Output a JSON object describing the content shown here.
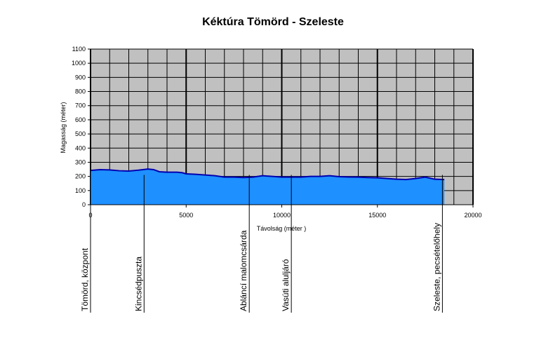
{
  "chart_data": {
    "type": "area",
    "title": "Kéktúra Tömörd - Szeleste",
    "xlabel": "Távolság (méter )",
    "ylabel": "Magasság (méter)",
    "xlim": [
      0,
      20000
    ],
    "ylim": [
      0,
      1100
    ],
    "x_ticks": [
      0,
      5000,
      10000,
      15000,
      20000
    ],
    "y_ticks": [
      0,
      100,
      200,
      300,
      400,
      500,
      600,
      700,
      800,
      900,
      1000,
      1100
    ],
    "grid": true,
    "colors": {
      "plot_background": "#c0c0c0",
      "area_fill": "#1e90ff",
      "profile_line": "#0000b0",
      "grid": "#000000"
    },
    "series": [
      {
        "x": [
          0,
          500,
          1000,
          1500,
          2000,
          2500,
          3000,
          3300,
          3600,
          4000,
          4500,
          4800,
          5000,
          5500,
          6000,
          6500,
          7000,
          7500,
          8000,
          8500,
          9000,
          9500,
          10000,
          10500,
          11000,
          11500,
          12000,
          12500,
          13000,
          13500,
          14000,
          14500,
          15000,
          15500,
          16000,
          16500,
          17000,
          17500,
          18000,
          18500
        ],
        "y": [
          242,
          248,
          246,
          240,
          238,
          244,
          252,
          248,
          233,
          230,
          230,
          226,
          218,
          215,
          210,
          205,
          195,
          195,
          192,
          195,
          205,
          200,
          195,
          195,
          195,
          200,
          200,
          205,
          198,
          196,
          195,
          192,
          190,
          185,
          180,
          178,
          185,
          195,
          180,
          178
        ]
      }
    ],
    "waypoints": [
      {
        "label": "Tömörd, központ",
        "x": 0
      },
      {
        "label": "Kincsédpuszta",
        "x": 2800
      },
      {
        "label": "Abláncí malomcsárda",
        "x": 8300
      },
      {
        "label": "Vasúti aluljáró",
        "x": 10500
      },
      {
        "label": "Szeleste, pecsételőhely",
        "x": 18400
      }
    ]
  }
}
